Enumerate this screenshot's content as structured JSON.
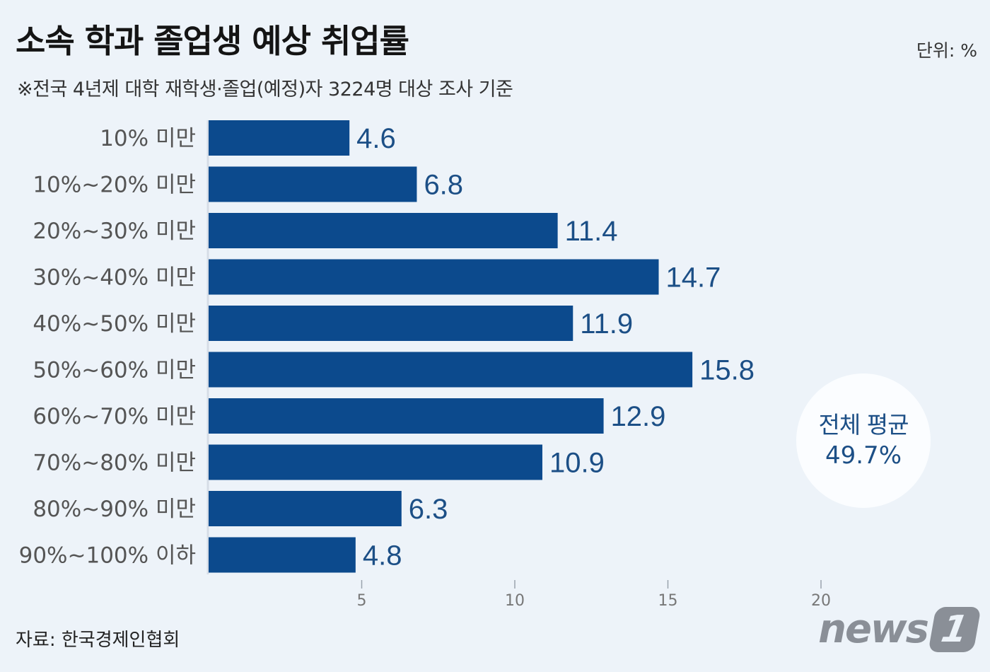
{
  "header": {
    "title": "소속 학과 졸업생 예상 취업률",
    "subtitle": "※전국 4년제 대학 재학생·졸업(예정)자 3224명 대상 조사 기준",
    "unit": "단위: %"
  },
  "average": {
    "label": "전체 평균",
    "value": "49.7%"
  },
  "footer": {
    "source": "자료: 한국경제인협회",
    "logo_text": "news",
    "logo_badge": "1"
  },
  "colors": {
    "bar": "#0c4a8d",
    "value_label": "#1c4f86",
    "category_label": "#555555",
    "tick_label": "#777777",
    "background": "#edf3f9"
  },
  "chart_data": {
    "type": "bar",
    "orientation": "horizontal",
    "categories": [
      "10% 미만",
      "10%~20% 미만",
      "20%~30% 미만",
      "30%~40% 미만",
      "40%~50% 미만",
      "50%~60% 미만",
      "60%~70% 미만",
      "70%~80% 미만",
      "80%~90% 미만",
      "90%~100% 이하"
    ],
    "values": [
      4.6,
      6.8,
      11.4,
      14.7,
      11.9,
      15.8,
      12.9,
      10.9,
      6.3,
      4.8
    ],
    "value_labels": [
      "4.6",
      "6.8",
      "11.4",
      "14.7",
      "11.9",
      "15.8",
      "12.9",
      "10.9",
      "6.3",
      "4.8"
    ],
    "xlim": [
      0,
      20
    ],
    "xticks": [
      5,
      10,
      15,
      20
    ],
    "xtick_labels": [
      "5",
      "10",
      "15",
      "20"
    ],
    "grid": false,
    "legend": "none"
  }
}
